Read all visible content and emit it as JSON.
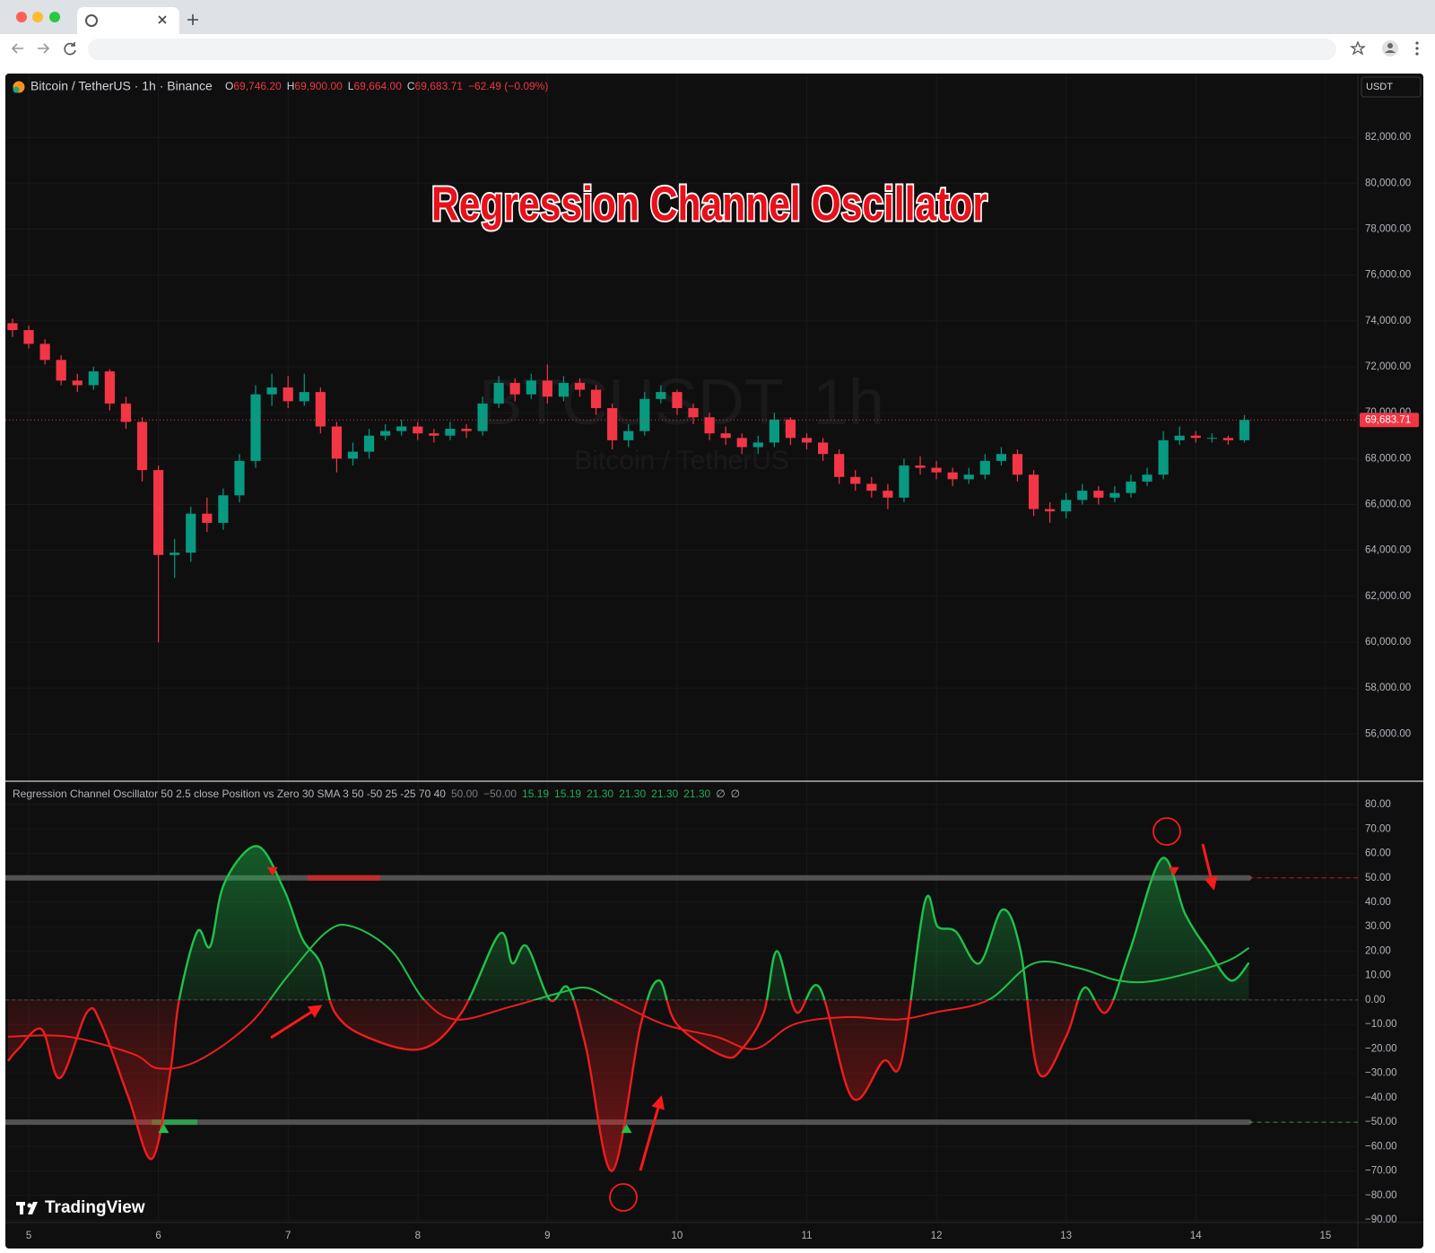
{
  "header": {
    "symbol": "Bitcoin / TetherUS · 1h · Binance",
    "o_label": "O",
    "open": "69,746.20",
    "h_label": "H",
    "high": "69,900.00",
    "l_label": "L",
    "low": "69,664.00",
    "c_label": "C",
    "close": "69,683.71",
    "change": "−62.49 (−0.09%)"
  },
  "currency": "USDT",
  "watermark": {
    "symbol": "BTCUSDT, 1h",
    "name": "Bitcoin / TetherUS"
  },
  "logo": "TradingView",
  "chart_data": [
    {
      "type": "candlestick",
      "title": "Regression Channel Oscillator",
      "up_color": "#089981",
      "down_color": "#f23645",
      "grid": true,
      "xlim": [
        4.82,
        15.25
      ],
      "xticks": [
        5,
        6,
        7,
        8,
        9,
        10,
        11,
        12,
        13,
        14,
        15
      ],
      "ylim": [
        53980,
        84780
      ],
      "yticks": [
        {
          "value": 56000,
          "label": "56,000.00"
        },
        {
          "value": 58000,
          "label": "58,000.00"
        },
        {
          "value": 60000,
          "label": "60,000.00"
        },
        {
          "value": 62000,
          "label": "62,000.00"
        },
        {
          "value": 64000,
          "label": "64,000.00"
        },
        {
          "value": 66000,
          "label": "66,000.00"
        },
        {
          "value": 68000,
          "label": "68,000.00"
        },
        {
          "value": 70000,
          "label": "70,000.00"
        },
        {
          "value": 72000,
          "label": "72,000.00"
        },
        {
          "value": 74000,
          "label": "74,000.00"
        },
        {
          "value": 76000,
          "label": "76,000.00"
        },
        {
          "value": 78000,
          "label": "78,000.00"
        },
        {
          "value": 80000,
          "label": "80,000.00"
        },
        {
          "value": 82000,
          "label": "82,000.00"
        }
      ],
      "last_price": 69683.71,
      "last_price_label": "69,683.71",
      "x": [
        4.875,
        5,
        5.125,
        5.25,
        5.375,
        5.5,
        5.625,
        5.75,
        5.875,
        6,
        6.125,
        6.25,
        6.375,
        6.5,
        6.625,
        6.75,
        6.875,
        7,
        7.125,
        7.25,
        7.375,
        7.5,
        7.625,
        7.75,
        7.875,
        8,
        8.125,
        8.25,
        8.375,
        8.5,
        8.625,
        8.75,
        8.875,
        9,
        9.125,
        9.25,
        9.375,
        9.5,
        9.625,
        9.75,
        9.875,
        10,
        10.125,
        10.25,
        10.375,
        10.5,
        10.625,
        10.75,
        10.875,
        11,
        11.125,
        11.25,
        11.375,
        11.5,
        11.625,
        11.75,
        11.875,
        12,
        12.125,
        12.25,
        12.375,
        12.5,
        12.625,
        12.75,
        12.875,
        13,
        13.125,
        13.25,
        13.375,
        13.5,
        13.625,
        13.75,
        13.875,
        14,
        14.125,
        14.25,
        14.375
      ],
      "candles": [
        [
          73900,
          74100,
          73300,
          73600
        ],
        [
          73600,
          73800,
          72800,
          73000
        ],
        [
          73000,
          73200,
          72100,
          72300
        ],
        [
          72300,
          72500,
          71200,
          71400
        ],
        [
          71400,
          71700,
          70900,
          71200
        ],
        [
          71200,
          72000,
          71000,
          71800
        ],
        [
          71800,
          71900,
          70100,
          70400
        ],
        [
          70400,
          70700,
          69300,
          69600
        ],
        [
          69600,
          69800,
          67000,
          67500
        ],
        [
          67500,
          67700,
          60000,
          63800
        ],
        [
          63800,
          64500,
          62800,
          63900
        ],
        [
          63900,
          65900,
          63500,
          65600
        ],
        [
          65600,
          66300,
          64800,
          65200
        ],
        [
          65200,
          66700,
          64900,
          66400
        ],
        [
          66400,
          68200,
          66100,
          67900
        ],
        [
          67900,
          71200,
          67600,
          70800
        ],
        [
          70800,
          71700,
          70300,
          71100
        ],
        [
          71100,
          71600,
          70200,
          70500
        ],
        [
          70500,
          71700,
          70300,
          70900
        ],
        [
          70900,
          71100,
          69100,
          69400
        ],
        [
          69400,
          69600,
          67400,
          68000
        ],
        [
          68000,
          68700,
          67700,
          68300
        ],
        [
          68300,
          69300,
          68000,
          69000
        ],
        [
          69000,
          69500,
          68800,
          69200
        ],
        [
          69200,
          69700,
          69000,
          69400
        ],
        [
          69400,
          69600,
          68800,
          69100
        ],
        [
          69100,
          69300,
          68700,
          69000
        ],
        [
          69000,
          69600,
          68800,
          69300
        ],
        [
          69300,
          69500,
          68900,
          69200
        ],
        [
          69200,
          70700,
          69000,
          70400
        ],
        [
          70400,
          71600,
          70200,
          71300
        ],
        [
          71300,
          71500,
          70500,
          70800
        ],
        [
          70800,
          71700,
          70600,
          71400
        ],
        [
          71400,
          72100,
          70400,
          70700
        ],
        [
          70700,
          71600,
          70500,
          71300
        ],
        [
          71300,
          71500,
          70700,
          71000
        ],
        [
          71000,
          71200,
          69900,
          70200
        ],
        [
          70200,
          70400,
          68400,
          68800
        ],
        [
          68800,
          69500,
          68500,
          69200
        ],
        [
          69200,
          70900,
          69000,
          70600
        ],
        [
          70600,
          71200,
          70400,
          70900
        ],
        [
          70900,
          71000,
          69900,
          70200
        ],
        [
          70200,
          70400,
          69500,
          69800
        ],
        [
          69800,
          70000,
          68800,
          69100
        ],
        [
          69100,
          69400,
          68600,
          68900
        ],
        [
          68900,
          69100,
          68200,
          68500
        ],
        [
          68500,
          69000,
          68200,
          68700
        ],
        [
          68700,
          70000,
          68500,
          69700
        ],
        [
          69700,
          69800,
          68600,
          68900
        ],
        [
          68900,
          69100,
          68400,
          68700
        ],
        [
          68700,
          68900,
          67900,
          68200
        ],
        [
          68200,
          68400,
          66900,
          67200
        ],
        [
          67200,
          67500,
          66600,
          66900
        ],
        [
          66900,
          67200,
          66300,
          66600
        ],
        [
          66600,
          66900,
          65800,
          66300
        ],
        [
          66300,
          68000,
          66100,
          67700
        ],
        [
          67700,
          68100,
          67300,
          67600
        ],
        [
          67600,
          67900,
          67100,
          67400
        ],
        [
          67400,
          67600,
          66800,
          67100
        ],
        [
          67100,
          67600,
          66900,
          67300
        ],
        [
          67300,
          68200,
          67100,
          67900
        ],
        [
          67900,
          68500,
          67700,
          68200
        ],
        [
          68200,
          68400,
          67000,
          67300
        ],
        [
          67300,
          67500,
          65500,
          65800
        ],
        [
          65800,
          66100,
          65200,
          65700
        ],
        [
          65700,
          66500,
          65400,
          66200
        ],
        [
          66200,
          66900,
          66000,
          66600
        ],
        [
          66600,
          66800,
          66000,
          66300
        ],
        [
          66300,
          66800,
          66100,
          66500
        ],
        [
          66500,
          67300,
          66300,
          67000
        ],
        [
          67000,
          67600,
          66800,
          67300
        ],
        [
          67300,
          69200,
          67100,
          68800
        ],
        [
          68800,
          69400,
          68600,
          69000
        ],
        [
          69000,
          69200,
          68700,
          68900
        ],
        [
          68900,
          69100,
          68700,
          68900
        ],
        [
          68900,
          69000,
          68600,
          68800
        ],
        [
          68800,
          69900,
          68700,
          69683.71
        ]
      ]
    },
    {
      "type": "line",
      "legend": "Regression Channel Oscillator 50 2.5 close Position vs Zero 30 SMA 3 50 -50 25 -25 70 40",
      "legend_values": [
        "50.00",
        "−50.00",
        "15.19",
        "15.19",
        "21.30",
        "21.30",
        "21.30",
        "21.30",
        "∅",
        "∅"
      ],
      "legend_value_colors": [
        "#787b86",
        "#787b86",
        "#22ab55",
        "#22ab55",
        "#22ab55",
        "#22ab55",
        "#22ab55",
        "#22ab55",
        "#b2b5be",
        "#b2b5be"
      ],
      "positive_color": "#1ec24b",
      "negative_color": "#f01c1c",
      "grid": true,
      "xlim": [
        4.82,
        15.25
      ],
      "ylim": [
        -91.1,
        89.2
      ],
      "yticks": [
        {
          "value": 80,
          "label": "80.00"
        },
        {
          "value": 70,
          "label": "70.00"
        },
        {
          "value": 60,
          "label": "60.00"
        },
        {
          "value": 50,
          "label": "50.00"
        },
        {
          "value": 40,
          "label": "40.00"
        },
        {
          "value": 30,
          "label": "30.00"
        },
        {
          "value": 20,
          "label": "20.00"
        },
        {
          "value": 10,
          "label": "10.00"
        },
        {
          "value": 0,
          "label": "0.00"
        },
        {
          "value": -10,
          "label": "−10.00"
        },
        {
          "value": -20,
          "label": "−20.00"
        },
        {
          "value": -30,
          "label": "−30.00"
        },
        {
          "value": -40,
          "label": "−40.00"
        },
        {
          "value": -50,
          "label": "−50.00"
        },
        {
          "value": -60,
          "label": "−60.00"
        },
        {
          "value": -70,
          "label": "−70.00"
        },
        {
          "value": -80,
          "label": "−80.00"
        },
        {
          "value": -90,
          "label": "−90.00"
        }
      ],
      "upper_level": 50,
      "lower_level": -50,
      "upper_highlight_x": [
        7.15,
        7.71
      ],
      "lower_highlight_x": [
        5.95,
        6.3
      ],
      "sell_signals_x": [
        6.88,
        13.83
      ],
      "buy_signals_x": [
        6.04,
        9.61
      ],
      "series": [
        {
          "x": [
            4.84,
            4.92,
            5.1,
            5.24,
            5.45,
            5.56,
            5.77,
            5.95,
            6.09,
            6.16,
            6.3,
            6.4,
            6.51,
            6.76,
            6.97,
            7.11,
            7.25,
            7.36,
            7.6,
            8.03,
            8.34,
            8.63,
            8.73,
            8.84,
            9.02,
            9.16,
            9.3,
            9.5,
            9.72,
            9.86,
            10.0,
            10.36,
            10.5,
            10.67,
            10.77,
            10.92,
            11.1,
            11.35,
            11.59,
            11.73,
            11.91,
            12.01,
            12.15,
            12.33,
            12.51,
            12.65,
            12.79,
            13.0,
            13.14,
            13.31,
            13.49,
            13.74,
            13.92,
            14.1,
            14.27,
            14.41
          ],
          "values": [
            -25,
            -20,
            -12,
            -32,
            -5,
            -10,
            -40,
            -65,
            -30,
            0,
            28,
            22,
            48,
            63,
            45,
            25,
            15,
            -5,
            -15,
            -20,
            -5,
            27,
            15,
            22,
            0,
            5,
            -20,
            -70,
            -10,
            8,
            -10,
            -23,
            -20,
            -5,
            20,
            -5,
            5,
            -40,
            -25,
            -25,
            40,
            30,
            28,
            15,
            37,
            20,
            -30,
            -15,
            5,
            -5,
            20,
            58,
            35,
            20,
            8,
            15.19
          ],
          "fill": true
        },
        {
          "x": [
            4.84,
            5.3,
            5.8,
            6.0,
            6.3,
            6.7,
            7.0,
            7.3,
            7.5,
            7.8,
            8.05,
            8.3,
            8.7,
            9.1,
            9.3,
            9.5,
            9.9,
            10.3,
            10.6,
            10.9,
            11.3,
            11.7,
            12.0,
            12.4,
            12.75,
            13.1,
            13.4,
            13.7,
            14.2,
            14.41
          ],
          "values": [
            -15,
            -15,
            -22,
            -28,
            -25,
            -10,
            10,
            28,
            30,
            20,
            0,
            -8,
            -3,
            3,
            5,
            0,
            -10,
            -15,
            -20,
            -10,
            -7,
            -8,
            -5,
            0,
            15,
            13,
            8,
            8,
            15,
            21.3
          ],
          "fill": false
        }
      ]
    }
  ]
}
